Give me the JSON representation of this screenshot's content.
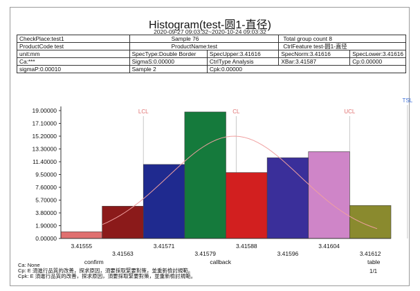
{
  "report": {
    "title": "Histogram(test-圆1-直径)",
    "date_range": "2020-09-27 09:03:32~2020-10-24 09:03:32",
    "page_number": "1/1"
  },
  "info_table": [
    [
      {
        "text": "CheckPlace:test1"
      },
      {
        "text": "Sample 76"
      },
      {
        "text": "Total group count 8"
      }
    ],
    [
      {
        "text": "ProductCode test"
      },
      {
        "text": "ProductName:test"
      },
      {
        "text": "CtrlFeature test-圆1-直径"
      }
    ],
    [
      {
        "text": "unit:mm"
      },
      {
        "text": "SpecType:Double Border"
      },
      {
        "text": "SpecUpper:3.41616"
      },
      {
        "text": "SpecNorm:3.41616"
      },
      {
        "text": "SpecLower:3.41616"
      }
    ],
    [
      {
        "text": "Ca:***"
      },
      {
        "text": "SigmaS:0.00000"
      },
      {
        "text": "CtrlType Analysis"
      },
      {
        "text": "XBar:3.41587"
      },
      {
        "text": "Cp:0.00000"
      }
    ],
    [
      {
        "text": "sigmaP:0.00010"
      },
      {
        "text": "Sample 2"
      },
      {
        "text": "Cpk:0.00000"
      }
    ]
  ],
  "chart_data": {
    "type": "bar",
    "categories": [
      "3.41555",
      "3.41563",
      "3.41571",
      "3.41579",
      "3.41588",
      "3.41596",
      "3.41604",
      "3.41612"
    ],
    "values": [
      1.0,
      4.8,
      11.0,
      18.8,
      9.8,
      12.0,
      12.9,
      4.9
    ],
    "bar_colors": [
      "#e07070",
      "#8b1a1a",
      "#1f2a8f",
      "#157a3c",
      "#d21f1f",
      "#3a2f9a",
      "#cf85c8",
      "#8a8a2e"
    ],
    "y_ticks": [
      "0.00000",
      "1.90000",
      "3.80000",
      "5.70000",
      "7.60000",
      "9.50000",
      "11.40000",
      "13.30000",
      "15.20000",
      "17.10000",
      "19.00000"
    ],
    "ylim": [
      0,
      19
    ],
    "reference_lines": [
      {
        "label": "LCL",
        "x_index": 1.5,
        "color": "#e07070"
      },
      {
        "label": "CL",
        "x_index": 3.75,
        "color": "#e07070"
      },
      {
        "label": "UCL",
        "x_index": 6.5,
        "color": "#e07070"
      },
      {
        "label": "TSL",
        "x_index": 7.9,
        "color": "#3c6fd8"
      }
    ],
    "x_bottom_labels": [
      "confirm",
      "callback",
      "table"
    ],
    "curve_color": "#f0a0a0",
    "grid": false
  },
  "footer": {
    "lines": [
      "Ca: None",
      "Cp: E 須進行品質的改善，探求原因，須要採取緊要對策，並重新檢討規範。",
      "Cpk: E 須進行品質的改善，探求原因，須要採取緊要對策，並重新檢討規範。"
    ]
  }
}
